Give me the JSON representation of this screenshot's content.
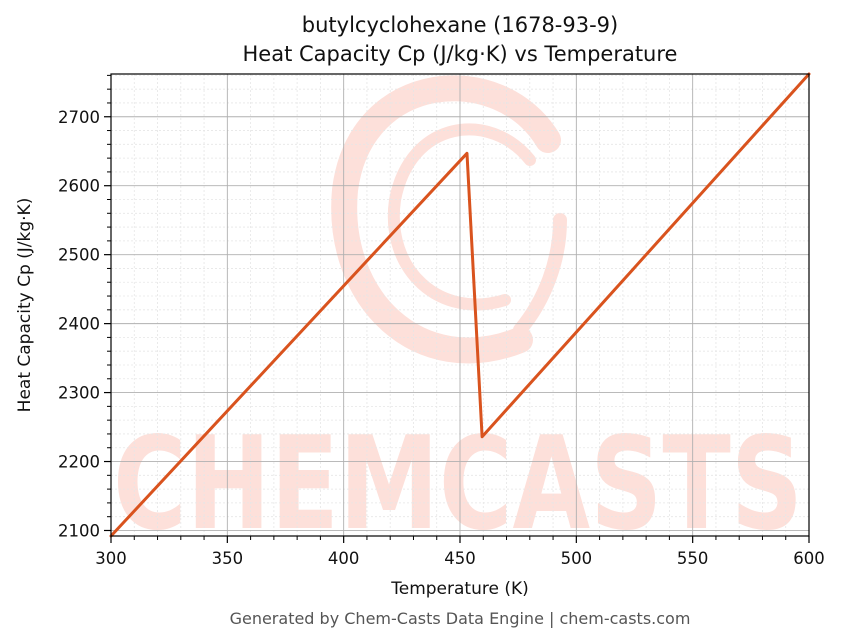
{
  "chart_data": {
    "type": "line",
    "title": "butylcyclohexane (1678-93-9)",
    "subtitle": "Heat Capacity Cp (J/kg·K) vs Temperature",
    "xlabel": "Temperature (K)",
    "ylabel": "Heat Capacity Cp (J/kg·K)",
    "xlim": [
      300,
      600
    ],
    "ylim": [
      2092,
      2762
    ],
    "xticks": [
      300,
      350,
      400,
      450,
      500,
      550,
      600
    ],
    "yticks": [
      2100,
      2200,
      2300,
      2400,
      2500,
      2600,
      2700
    ],
    "grid": true,
    "series": [
      {
        "color": "#d9531e",
        "x": [
          300,
          453,
          459.5,
          600
        ],
        "y": [
          2092,
          2647,
          2236,
          2762
        ]
      }
    ]
  },
  "footer": "Generated by Chem-Casts Data Engine | chem-casts.com",
  "watermark": "CHEMCASTS",
  "colors": {
    "line": "#d9531e",
    "watermark": "#fde0da",
    "grid_major": "#b0b0b0",
    "grid_minor": "#e6e6e6"
  }
}
